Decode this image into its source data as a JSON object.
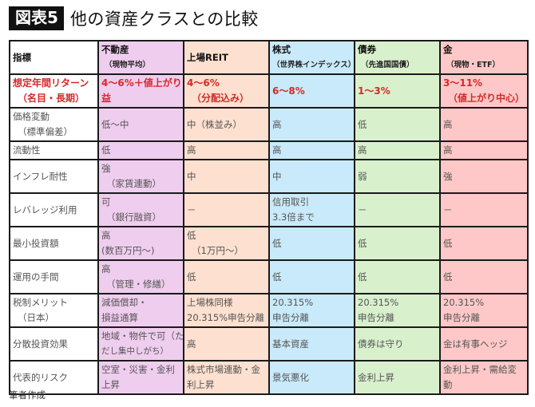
{
  "title": {
    "figure_label": "図表5",
    "text": "他の資産クラスとの比較"
  },
  "colors": {
    "real_estate": "#efcdee",
    "reit": "#fde0cf",
    "stocks": "#c9eafa",
    "bonds": "#d9f0cd",
    "gold": "#fec8c8",
    "return_text": "#d42a2a"
  },
  "table": {
    "header": {
      "metric": "指標",
      "real_estate": {
        "name": "不動産",
        "sub": "（現物平均）"
      },
      "reit": {
        "name": "上場REIT",
        "sub": ""
      },
      "stocks": {
        "name": "株式",
        "sub": "（世界株インデックス）"
      },
      "bonds": {
        "name": "債券",
        "sub": "（先進国国債）"
      },
      "gold": {
        "name": "金",
        "sub": "（現物・ETF）"
      }
    },
    "rows": [
      {
        "metric": [
          "想定年間リターン",
          "（名目・長期）"
        ],
        "real_estate": [
          "4～6%＋値上がり",
          "益"
        ],
        "reit": [
          "4～6%",
          "（分配込み）"
        ],
        "stocks": [
          "6～8%"
        ],
        "bonds": [
          "1～3%"
        ],
        "gold": [
          "3～11%",
          "（値上がり中心）"
        ]
      },
      {
        "metric": [
          "価格変動",
          "（標準偏差）"
        ],
        "real_estate": [
          "低～中"
        ],
        "reit": [
          "中（株並み）"
        ],
        "stocks": [
          "高"
        ],
        "bonds": [
          "低"
        ],
        "gold": [
          "高"
        ]
      },
      {
        "metric": [
          "流動性"
        ],
        "real_estate": [
          "低"
        ],
        "reit": [
          "高"
        ],
        "stocks": [
          "高"
        ],
        "bonds": [
          "高"
        ],
        "gold": [
          "高"
        ]
      },
      {
        "metric": [
          "インフレ耐性"
        ],
        "real_estate": [
          "強",
          "（家賃連動）"
        ],
        "reit": [
          "中"
        ],
        "stocks": [
          "中"
        ],
        "bonds": [
          "弱"
        ],
        "gold": [
          "強"
        ]
      },
      {
        "metric": [
          "レバレッジ利用"
        ],
        "real_estate": [
          "可",
          "（銀行融資）"
        ],
        "reit": [
          "－"
        ],
        "stocks": [
          "信用取引",
          "3.3倍まで"
        ],
        "bonds": [
          "－"
        ],
        "gold": [
          "－"
        ]
      },
      {
        "metric": [
          "最小投資額"
        ],
        "real_estate": [
          "高",
          "(数百万円～)"
        ],
        "reit": [
          "低",
          "（1万円～）"
        ],
        "stocks": [
          "低"
        ],
        "bonds": [
          "低"
        ],
        "gold": [
          "低"
        ]
      },
      {
        "metric": [
          "運用の手間"
        ],
        "real_estate": [
          "高",
          "（管理・修繕）"
        ],
        "reit": [
          "低"
        ],
        "stocks": [
          "低"
        ],
        "bonds": [
          "低"
        ],
        "gold": [
          "低"
        ]
      },
      {
        "metric": [
          "税制メリット",
          "（日本）"
        ],
        "real_estate": [
          "減価償却・",
          "損益通算"
        ],
        "reit": [
          "上場株同様",
          "20.315%申告分離"
        ],
        "stocks": [
          "20.315%",
          "申告分離"
        ],
        "bonds": [
          "20.315%",
          "申告分離"
        ],
        "gold": [
          "20.315%",
          "申告分離"
        ]
      },
      {
        "metric": [
          "分散投資効果"
        ],
        "real_estate": [
          "地域・物件で可（た",
          "だし集中しがち）"
        ],
        "reit": [
          "高"
        ],
        "stocks": [
          "基本資産"
        ],
        "bonds": [
          "債券は守り"
        ],
        "gold": [
          "金は有事ヘッジ"
        ]
      },
      {
        "metric": [
          "代表的リスク"
        ],
        "real_estate": [
          "空室・災害・金利",
          "上昇"
        ],
        "reit": [
          "株式市場連動・金",
          "利上昇"
        ],
        "stocks": [
          "景気悪化"
        ],
        "bonds": [
          "金利上昇"
        ],
        "gold": [
          "金利上昇・需給変",
          "動"
        ]
      }
    ]
  },
  "footer": "筆者作成"
}
